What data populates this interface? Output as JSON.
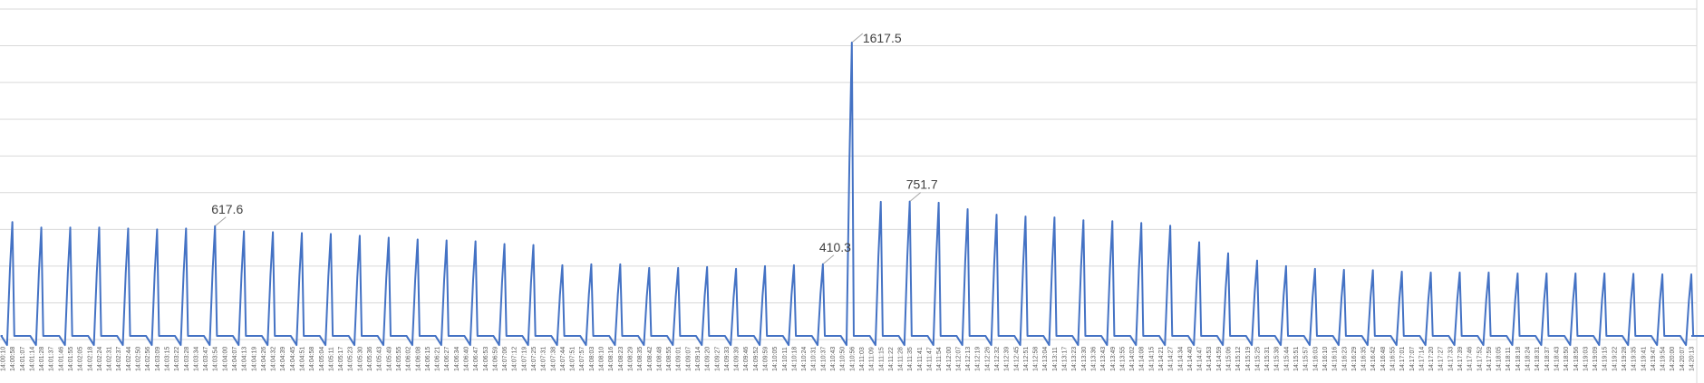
{
  "chart_data": {
    "type": "line",
    "title": "",
    "xlabel": "",
    "ylabel": "",
    "ylim": [
      0,
      1800
    ],
    "grid": true,
    "legend": "none",
    "line_color": "#4472c4",
    "categories": [
      "14:00:10",
      "14:00:58",
      "14:01:07",
      "14:01:14",
      "14:01:28",
      "14:01:37",
      "14:01:46",
      "14:01:55",
      "14:02:05",
      "14:02:18",
      "14:02:24",
      "14:02:31",
      "14:02:37",
      "14:02:44",
      "14:02:50",
      "14:02:56",
      "14:03:09",
      "14:03:15",
      "14:03:22",
      "14:03:28",
      "14:03:34",
      "14:03:47",
      "14:03:54",
      "14:04:00",
      "14:04:07",
      "14:04:13",
      "14:04:19",
      "14:04:26",
      "14:04:32",
      "14:04:39",
      "14:04:45",
      "14:04:51",
      "14:04:58",
      "14:05:04",
      "14:05:11",
      "14:05:17",
      "14:05:23",
      "14:05:30",
      "14:05:36",
      "14:05:43",
      "14:05:49",
      "14:05:55",
      "14:06:02",
      "14:06:08",
      "14:06:15",
      "14:06:21",
      "14:06:27",
      "14:06:34",
      "14:06:40",
      "14:06:47",
      "14:06:53",
      "14:06:59",
      "14:07:06",
      "14:07:12",
      "14:07:19",
      "14:07:25",
      "14:07:31",
      "14:07:38",
      "14:07:44",
      "14:07:51",
      "14:07:57",
      "14:08:03",
      "14:08:10",
      "14:08:16",
      "14:08:23",
      "14:08:29",
      "14:08:35",
      "14:08:42",
      "14:08:48",
      "14:08:55",
      "14:09:01",
      "14:09:07",
      "14:09:14",
      "14:09:20",
      "14:09:27",
      "14:09:33",
      "14:09:39",
      "14:09:46",
      "14:09:52",
      "14:09:59",
      "14:10:05",
      "14:10:11",
      "14:10:18",
      "14:10:24",
      "14:10:31",
      "14:10:37",
      "14:10:43",
      "14:10:50",
      "14:10:56",
      "14:11:03",
      "14:11:09",
      "14:11:15",
      "14:11:22",
      "14:11:28",
      "14:11:35",
      "14:11:41",
      "14:11:47",
      "14:11:54",
      "14:12:00",
      "14:12:07",
      "14:12:13",
      "14:12:19",
      "14:12:26",
      "14:12:32",
      "14:12:39",
      "14:12:45",
      "14:12:51",
      "14:12:58",
      "14:13:04",
      "14:13:11",
      "14:13:17",
      "14:13:23",
      "14:13:30",
      "14:13:36",
      "14:13:43",
      "14:13:49",
      "14:13:55",
      "14:14:02",
      "14:14:08",
      "14:14:15",
      "14:14:21",
      "14:14:27",
      "14:14:34",
      "14:14:40",
      "14:14:47",
      "14:14:53",
      "14:14:59",
      "14:15:06",
      "14:15:12",
      "14:15:19",
      "14:15:25",
      "14:15:31",
      "14:15:38",
      "14:15:44",
      "14:15:51",
      "14:15:57",
      "14:16:03",
      "14:16:10",
      "14:16:16",
      "14:16:23",
      "14:16:29",
      "14:16:35",
      "14:16:42",
      "14:16:48",
      "14:16:55",
      "14:17:01",
      "14:17:07",
      "14:17:14",
      "14:17:20",
      "14:17:27",
      "14:17:33",
      "14:17:39",
      "14:17:46",
      "14:17:52",
      "14:17:59",
      "14:18:05",
      "14:18:11",
      "14:18:18",
      "14:18:24",
      "14:18:31",
      "14:18:37",
      "14:18:43",
      "14:18:50",
      "14:18:56",
      "14:19:03",
      "14:19:09",
      "14:19:15",
      "14:19:22",
      "14:19:28",
      "14:19:35",
      "14:19:41",
      "14:19:47",
      "14:19:54",
      "14:20:00",
      "14:20:07",
      "14:20:13"
    ],
    "peaks": [
      {
        "index": 1,
        "value": 640
      },
      {
        "index": 4,
        "value": 610
      },
      {
        "index": 7,
        "value": 610
      },
      {
        "index": 10,
        "value": 610
      },
      {
        "index": 13,
        "value": 605
      },
      {
        "index": 16,
        "value": 600
      },
      {
        "index": 19,
        "value": 605
      },
      {
        "index": 22,
        "value": 617.6
      },
      {
        "index": 25,
        "value": 590
      },
      {
        "index": 28,
        "value": 585
      },
      {
        "index": 31,
        "value": 580
      },
      {
        "index": 34,
        "value": 575
      },
      {
        "index": 37,
        "value": 565
      },
      {
        "index": 40,
        "value": 555
      },
      {
        "index": 43,
        "value": 545
      },
      {
        "index": 46,
        "value": 540
      },
      {
        "index": 49,
        "value": 535
      },
      {
        "index": 52,
        "value": 520
      },
      {
        "index": 55,
        "value": 515
      },
      {
        "index": 58,
        "value": 405
      },
      {
        "index": 61,
        "value": 410
      },
      {
        "index": 64,
        "value": 410
      },
      {
        "index": 67,
        "value": 390
      },
      {
        "index": 70,
        "value": 390
      },
      {
        "index": 73,
        "value": 395
      },
      {
        "index": 76,
        "value": 385
      },
      {
        "index": 79,
        "value": 400
      },
      {
        "index": 82,
        "value": 405
      },
      {
        "index": 85,
        "value": 410.3
      },
      {
        "index": 88,
        "value": 1617.5
      },
      {
        "index": 91,
        "value": 750
      },
      {
        "index": 94,
        "value": 751.7
      },
      {
        "index": 97,
        "value": 745
      },
      {
        "index": 100,
        "value": 710
      },
      {
        "index": 103,
        "value": 680
      },
      {
        "index": 106,
        "value": 670
      },
      {
        "index": 109,
        "value": 665
      },
      {
        "index": 112,
        "value": 650
      },
      {
        "index": 115,
        "value": 645
      },
      {
        "index": 118,
        "value": 635
      },
      {
        "index": 121,
        "value": 620
      },
      {
        "index": 124,
        "value": 530
      },
      {
        "index": 127,
        "value": 470
      },
      {
        "index": 130,
        "value": 430
      },
      {
        "index": 133,
        "value": 400
      },
      {
        "index": 136,
        "value": 385
      },
      {
        "index": 139,
        "value": 380
      },
      {
        "index": 142,
        "value": 378
      },
      {
        "index": 145,
        "value": 370
      },
      {
        "index": 148,
        "value": 365
      },
      {
        "index": 151,
        "value": 365
      },
      {
        "index": 154,
        "value": 365
      },
      {
        "index": 157,
        "value": 360
      },
      {
        "index": 160,
        "value": 360
      },
      {
        "index": 163,
        "value": 360
      },
      {
        "index": 166,
        "value": 360
      },
      {
        "index": 169,
        "value": 358
      },
      {
        "index": 172,
        "value": 355
      },
      {
        "index": 175,
        "value": 355
      },
      {
        "index": 178,
        "value": 358
      },
      {
        "index": 181,
        "value": 360
      },
      {
        "index": 184,
        "value": 362
      },
      {
        "index": 187,
        "value": 360
      },
      {
        "index": 190,
        "value": 358
      },
      {
        "index": 193,
        "value": 360
      },
      {
        "index": 196,
        "value": 362
      },
      {
        "index": 199,
        "value": 362
      },
      {
        "index": 202,
        "value": 365
      }
    ],
    "baseline": 20,
    "dip": -30,
    "annotations": [
      {
        "peak_index": 7,
        "label": "617.6"
      },
      {
        "peak_index": 28,
        "label": "410.3"
      },
      {
        "peak_index": 29,
        "label": "1617.5"
      },
      {
        "peak_index": 31,
        "label": "751.7"
      }
    ]
  }
}
